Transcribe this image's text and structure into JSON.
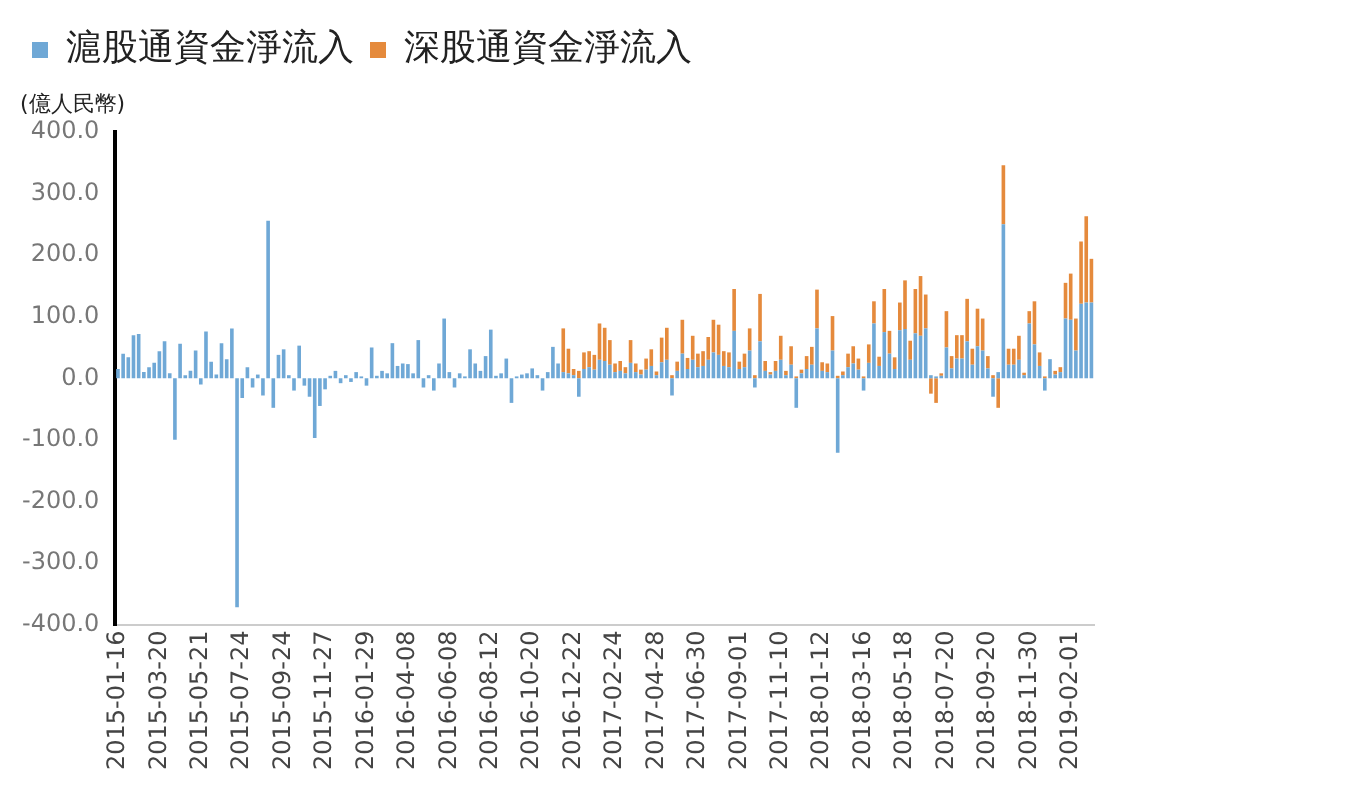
{
  "chart_data": {
    "type": "bar",
    "stacked": true,
    "ylabel": "(億人民幣)",
    "legend": "top",
    "grid": false,
    "categories": [
      "2015-01-16",
      null,
      null,
      null,
      null,
      null,
      null,
      null,
      "2015-03-20",
      null,
      null,
      null,
      null,
      null,
      null,
      null,
      "2015-05-21",
      null,
      null,
      null,
      null,
      null,
      null,
      null,
      "2015-07-24",
      null,
      null,
      null,
      null,
      null,
      null,
      null,
      "2015-09-24",
      null,
      null,
      null,
      null,
      null,
      null,
      null,
      "2015-11-27",
      null,
      null,
      null,
      null,
      null,
      null,
      null,
      "2016-01-29",
      null,
      null,
      null,
      null,
      null,
      null,
      null,
      "2016-04-08",
      null,
      null,
      null,
      null,
      null,
      null,
      null,
      "2016-06-08",
      null,
      null,
      null,
      null,
      null,
      null,
      null,
      "2016-08-12",
      null,
      null,
      null,
      null,
      null,
      null,
      null,
      "2016-10-20",
      null,
      null,
      null,
      null,
      null,
      null,
      null,
      "2016-12-22",
      null,
      null,
      null,
      null,
      null,
      null,
      null,
      "2017-02-24",
      null,
      null,
      null,
      null,
      null,
      null,
      null,
      "2017-04-28",
      null,
      null,
      null,
      null,
      null,
      null,
      null,
      "2017-06-30",
      null,
      null,
      null,
      null,
      null,
      null,
      null,
      "2017-09-01",
      null,
      null,
      null,
      null,
      null,
      null,
      null,
      "2017-11-10",
      null,
      null,
      null,
      null,
      null,
      null,
      null,
      "2018-01-12",
      null,
      null,
      null,
      null,
      null,
      null,
      null,
      "2018-03-16",
      null,
      null,
      null,
      null,
      null,
      null,
      null,
      "2018-05-18",
      null,
      null,
      null,
      null,
      null,
      null,
      null,
      "2018-07-20",
      null,
      null,
      null,
      null,
      null,
      null,
      null,
      "2018-09-20",
      null,
      null,
      null,
      null,
      null,
      null,
      null,
      "2018-11-30",
      null,
      null,
      null,
      null,
      null,
      null,
      null,
      "2019-02-01",
      null,
      null,
      null,
      null
    ],
    "series": [
      {
        "name": "滬股通資金淨流入",
        "color": "#6fa8d6",
        "values": [
          15,
          40,
          34,
          70,
          72,
          10,
          18,
          25,
          44,
          60,
          8,
          -100,
          56,
          5,
          12,
          45,
          -10,
          76,
          27,
          6,
          57,
          31,
          81,
          -372,
          -32,
          18,
          -15,
          6,
          -28,
          256,
          -48,
          38,
          47,
          5,
          -20,
          53,
          -12,
          -30,
          -97,
          -45,
          -18,
          4,
          12,
          -8,
          5,
          -6,
          10,
          3,
          -12,
          50,
          4,
          12,
          8,
          57,
          20,
          24,
          23,
          8,
          62,
          -15,
          5,
          -20,
          24,
          97,
          10,
          -15,
          8,
          3,
          47,
          24,
          12,
          36,
          79,
          4,
          8,
          32,
          -40,
          3,
          6,
          8,
          16,
          5,
          -20,
          10,
          51,
          24,
          10,
          8,
          5,
          -30,
          15,
          18,
          14,
          30,
          28,
          22,
          10,
          12,
          8,
          25,
          10,
          6,
          14,
          20,
          5,
          26,
          30,
          -28,
          12,
          40,
          15,
          30,
          18,
          20,
          30,
          42,
          38,
          20,
          18,
          77,
          15,
          18,
          45,
          -15,
          60,
          12,
          6,
          12,
          30,
          5,
          22,
          -48,
          8,
          15,
          22,
          81,
          12,
          10,
          45,
          -121,
          5,
          18,
          24,
          14,
          -20,
          25,
          89,
          20,
          75,
          40,
          15,
          78,
          80,
          30,
          73,
          69,
          81,
          5,
          3,
          4,
          50,
          16,
          32,
          32,
          60,
          22,
          52,
          45,
          16,
          -30,
          10,
          250,
          22,
          22,
          30,
          5,
          89,
          55,
          20,
          -20,
          31,
          6,
          10,
          97,
          95,
          45,
          121,
          123,
          123
        ]
      },
      {
        "name": "深股通資金淨流入",
        "color": "#e58a3c",
        "values": [
          null,
          null,
          null,
          null,
          null,
          null,
          null,
          null,
          null,
          null,
          null,
          null,
          null,
          null,
          null,
          null,
          null,
          null,
          null,
          null,
          null,
          null,
          null,
          null,
          null,
          null,
          null,
          null,
          null,
          null,
          null,
          null,
          null,
          null,
          null,
          null,
          null,
          null,
          null,
          null,
          null,
          null,
          null,
          null,
          null,
          null,
          null,
          null,
          null,
          null,
          null,
          null,
          null,
          null,
          null,
          null,
          null,
          null,
          null,
          null,
          null,
          null,
          null,
          null,
          null,
          null,
          null,
          null,
          null,
          null,
          null,
          null,
          null,
          null,
          null,
          null,
          null,
          null,
          null,
          null,
          null,
          null,
          null,
          null,
          null,
          null,
          71,
          40,
          10,
          12,
          27,
          26,
          24,
          59,
          54,
          40,
          14,
          16,
          10,
          37,
          14,
          8,
          18,
          27,
          6,
          40,
          52,
          5,
          15,
          55,
          18,
          39,
          22,
          24,
          37,
          53,
          49,
          24,
          24,
          68,
          12,
          22,
          36,
          5,
          77,
          16,
          4,
          16,
          39,
          7,
          30,
          3,
          6,
          21,
          29,
          63,
          14,
          14,
          56,
          4,
          6,
          22,
          28,
          18,
          3,
          30,
          36,
          15,
          70,
          37,
          19,
          45,
          79,
          31,
          72,
          97,
          55,
          -25,
          -40,
          4,
          59,
          20,
          38,
          38,
          69,
          26,
          61,
          52,
          20,
          5,
          -48,
          96,
          26,
          26,
          39,
          4,
          20,
          70,
          22,
          3,
          0,
          6,
          8,
          58,
          75,
          52,
          101,
          140,
          71
        ]
      }
    ],
    "ylim": [
      -400,
      400
    ],
    "yticks": [
      {
        "value": -400,
        "label": "-400.0"
      },
      {
        "value": -300,
        "label": "-300.0"
      },
      {
        "value": -200,
        "label": "-200.0"
      },
      {
        "value": -100,
        "label": "-100.0"
      },
      {
        "value": 0,
        "label": "0.0"
      },
      {
        "value": 100,
        "label": "100.0"
      },
      {
        "value": 200,
        "label": "200.0"
      },
      {
        "value": 300,
        "label": "300.0"
      },
      {
        "value": 400,
        "label": "400.0"
      }
    ]
  }
}
